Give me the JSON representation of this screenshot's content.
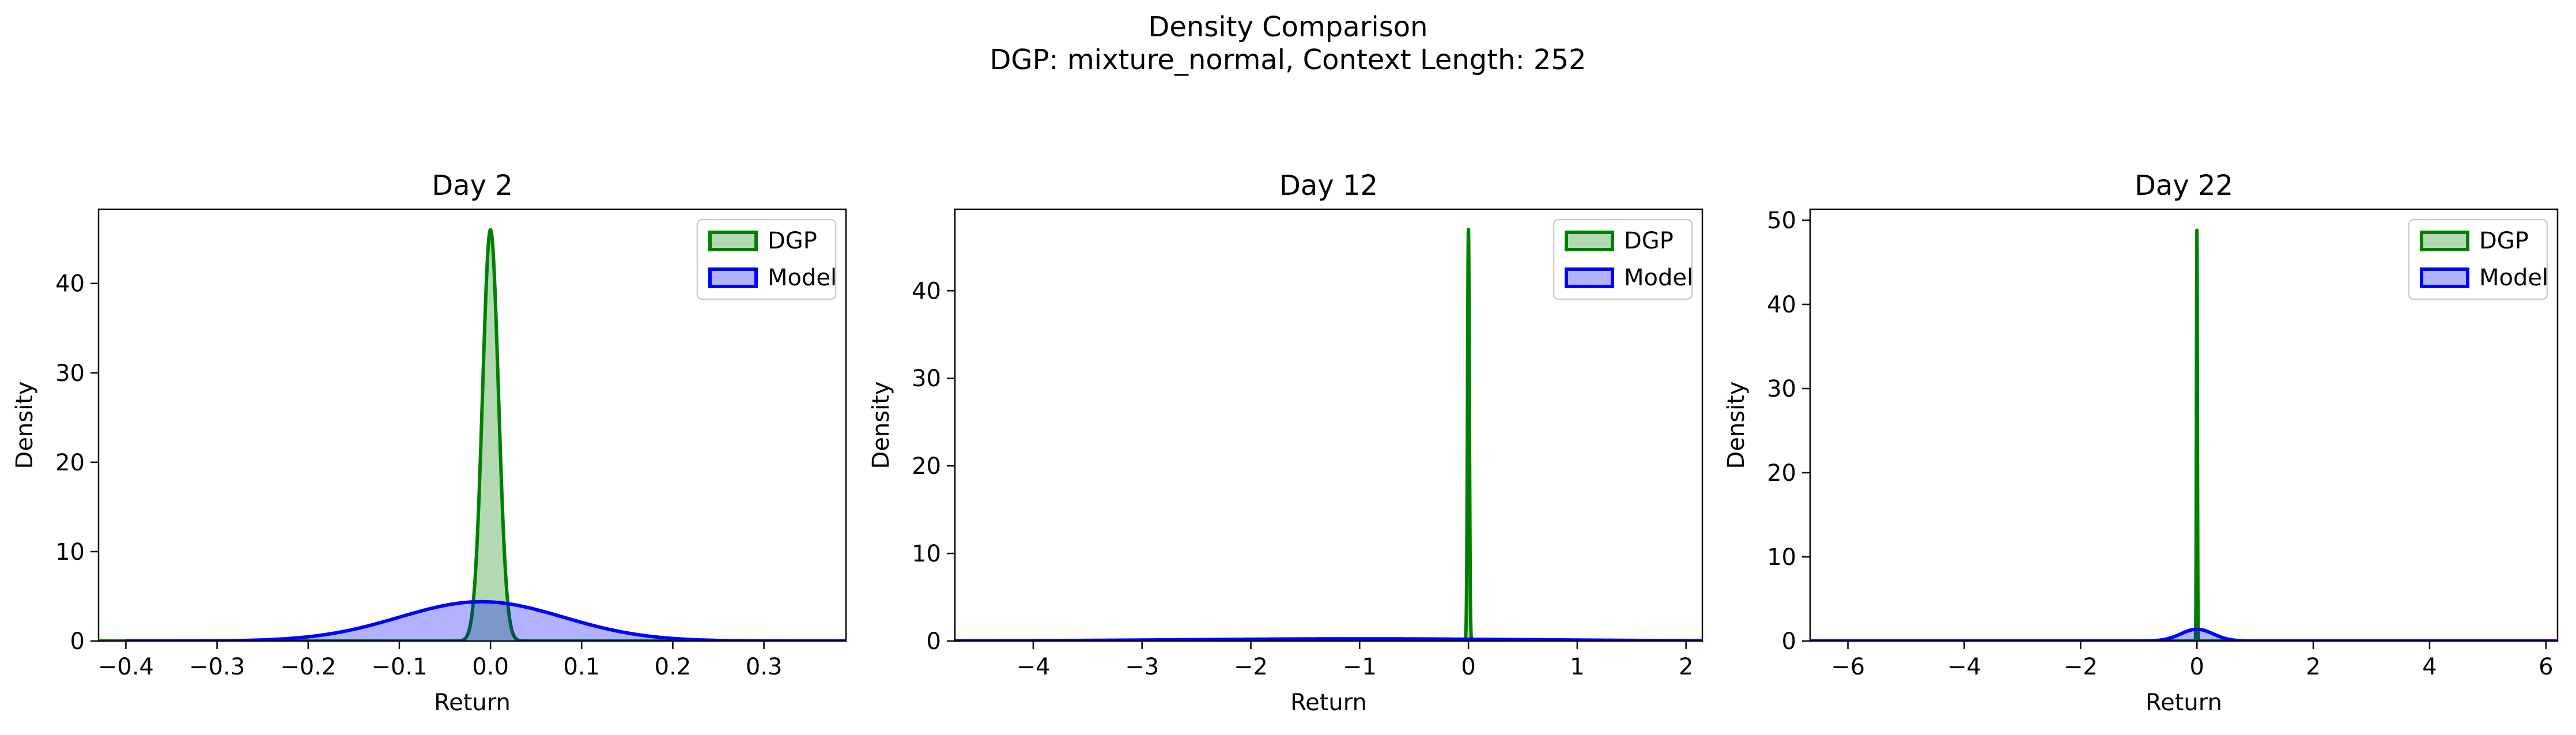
{
  "figure": {
    "title_line1": "Density Comparison",
    "title_line2": "DGP: mixture_normal, Context Length: 252"
  },
  "colors": {
    "dgp": "#008000",
    "model": "#0000ff"
  },
  "chart_data": [
    {
      "type": "area",
      "title": "Day 2",
      "xlabel": "Return",
      "ylabel": "Density",
      "xlim": [
        -0.43,
        0.39
      ],
      "ylim": [
        0,
        48.3
      ],
      "xticks": [
        -0.4,
        -0.3,
        -0.2,
        -0.1,
        0.0,
        0.1,
        0.2,
        0.3
      ],
      "xtick_labels": [
        "−0.4",
        "−0.3",
        "−0.2",
        "−0.1",
        "0.0",
        "0.1",
        "0.2",
        "0.3"
      ],
      "yticks": [
        0,
        10,
        20,
        30,
        40
      ],
      "ytick_labels": [
        "0",
        "10",
        "20",
        "30",
        "40"
      ],
      "legend": "top-right",
      "series": [
        {
          "name": "DGP",
          "distribution": "normal",
          "mean": 0.0,
          "sd": 0.0087,
          "peak_density": 46.0,
          "x_range": [
            -0.43,
            0.39
          ]
        },
        {
          "name": "Model",
          "distribution": "normal",
          "mean": -0.01,
          "sd": 0.09,
          "peak_density": 4.4,
          "x_range": [
            -0.4,
            0.39
          ]
        }
      ]
    },
    {
      "type": "area",
      "title": "Day 12",
      "xlabel": "Return",
      "ylabel": "Density",
      "xlim": [
        -4.72,
        2.15
      ],
      "ylim": [
        0,
        49.3
      ],
      "xticks": [
        -4,
        -3,
        -2,
        -1,
        0,
        1,
        2
      ],
      "xtick_labels": [
        "−4",
        "−3",
        "−2",
        "−1",
        "0",
        "1",
        "2"
      ],
      "yticks": [
        0,
        10,
        20,
        30,
        40
      ],
      "ytick_labels": [
        "0",
        "10",
        "20",
        "30",
        "40"
      ],
      "legend": "top-right",
      "series": [
        {
          "name": "DGP",
          "distribution": "normal",
          "mean": 0.0,
          "sd": 0.0085,
          "peak_density": 47.0,
          "x_range": [
            -4.72,
            2.15
          ]
        },
        {
          "name": "Model",
          "distribution": "normal",
          "mean": -1.0,
          "sd": 1.6,
          "peak_density": 0.25,
          "x_range": [
            -4.72,
            2.15
          ]
        }
      ]
    },
    {
      "type": "area",
      "title": "Day 22",
      "xlabel": "Return",
      "ylabel": "Density",
      "xlim": [
        -6.65,
        6.2
      ],
      "ylim": [
        0,
        51.3
      ],
      "xticks": [
        -6,
        -4,
        -2,
        0,
        2,
        4,
        6
      ],
      "xtick_labels": [
        "−6",
        "−4",
        "−2",
        "0",
        "2",
        "4",
        "6"
      ],
      "yticks": [
        0,
        10,
        20,
        30,
        40,
        50
      ],
      "ytick_labels": [
        "0",
        "10",
        "20",
        "30",
        "40",
        "50"
      ],
      "legend": "top-right",
      "series": [
        {
          "name": "DGP",
          "distribution": "normal",
          "mean": 0.0,
          "sd": 0.0082,
          "peak_density": 48.8,
          "x_range": [
            -6.65,
            6.2
          ]
        },
        {
          "name": "Model",
          "distribution": "normal",
          "mean": 0.0,
          "sd": 0.28,
          "peak_density": 1.4,
          "x_range": [
            -6.65,
            6.2
          ]
        }
      ]
    }
  ]
}
